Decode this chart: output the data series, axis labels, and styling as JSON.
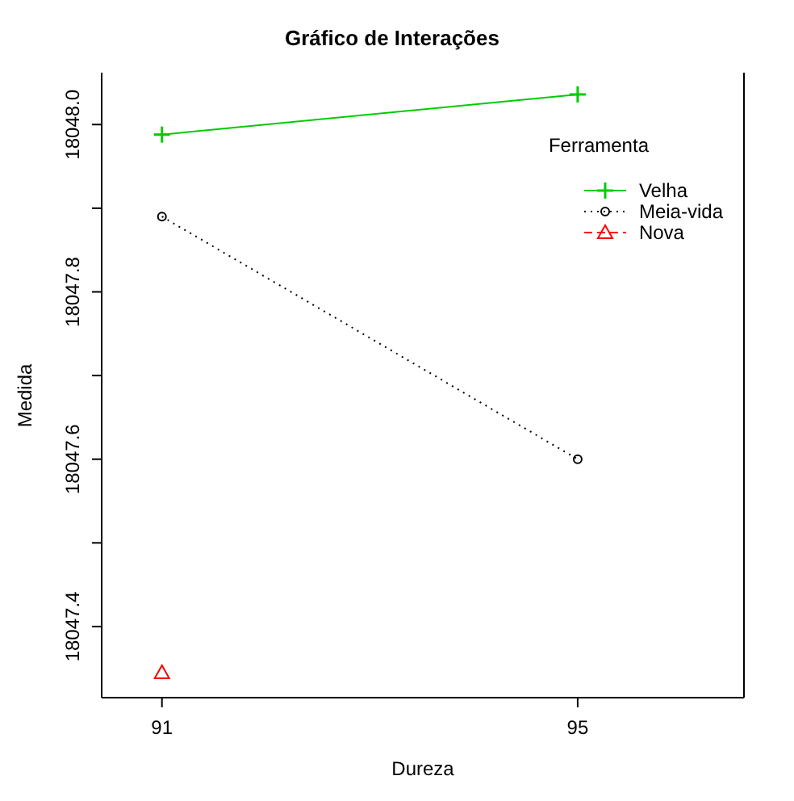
{
  "chart_data": {
    "type": "line",
    "title": "Gráfico de Interações",
    "xlabel": "Dureza",
    "ylabel": "Medida",
    "legend_title": "Ferramenta",
    "x": [
      91,
      95
    ],
    "series": [
      {
        "name": "Velha",
        "color": "#00cc00",
        "values": [
          18047.988,
          18048.036
        ],
        "marker": "cross",
        "line_style": "solid"
      },
      {
        "name": "Meia-vida",
        "color": "#000000",
        "values": [
          18047.89,
          18047.6
        ],
        "marker": "circle",
        "line_style": "dotted"
      },
      {
        "name": "Nova",
        "color": "#ff0000",
        "values": [
          18047.345,
          null
        ],
        "marker": "triangle",
        "line_style": "dashed"
      }
    ],
    "xlim": [
      90.42,
      96.6
    ],
    "xticks": [
      91,
      95
    ],
    "ylim": [
      18047.315,
      18048.062
    ],
    "yticks": [
      {
        "value": 18047.4,
        "label": "18047.4"
      },
      {
        "value": 18047.5,
        "label": null
      },
      {
        "value": 18047.6,
        "label": "18047.6"
      },
      {
        "value": 18047.7,
        "label": null
      },
      {
        "value": 18047.8,
        "label": "18047.8"
      },
      {
        "value": 18047.9,
        "label": null
      },
      {
        "value": 18048.0,
        "label": "18048.0"
      }
    ],
    "legend": "top right",
    "grid": false
  }
}
